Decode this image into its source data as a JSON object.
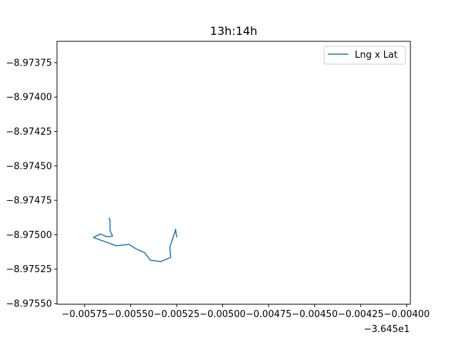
{
  "chart_data": {
    "type": "line",
    "title": "13h:14h",
    "xlabel": "",
    "ylabel": "",
    "x_offset_label": "−3.645e1",
    "xlim": [
      -0.0059,
      -0.00398
    ],
    "ylim": [
      -0.975505,
      -0.973595
    ],
    "grid": false,
    "legend_position": "upper right",
    "x_ticks": [
      -0.00575,
      -0.0055,
      -0.00525,
      -0.005,
      -0.00475,
      -0.0045,
      -0.00425,
      -0.004
    ],
    "x_tick_labels": [
      "−0.00575",
      "−0.00550",
      "−0.00525",
      "−0.00500",
      "−0.00475",
      "−0.00450",
      "−0.00425",
      "−0.00400"
    ],
    "y_ticks": [
      -8.97375,
      -8.974,
      -8.97425,
      -8.9745,
      -8.97475,
      -8.975,
      -8.97525,
      -8.9755
    ],
    "y_tick_labels": [
      "−8.97375",
      "−8.97400",
      "−8.97425",
      "−8.97450",
      "−8.97475",
      "−8.97500",
      "−8.97525",
      "−8.97550"
    ],
    "series": [
      {
        "name": "Lng x Lat",
        "color": "#1f77b4",
        "x": [
          -0.005617,
          -0.005612,
          -0.005612,
          -0.005598,
          -0.005628,
          -0.005665,
          -0.005702,
          -0.005661,
          -0.00563,
          -0.005578,
          -0.005508,
          -0.005474,
          -0.005424,
          -0.005393,
          -0.005336,
          -0.005282,
          -0.005287,
          -0.005257,
          -0.005256,
          -0.00525
        ],
        "y": [
          -8.97488,
          -8.974895,
          -8.97497,
          -8.97501,
          -8.975015,
          -8.974995,
          -8.97502,
          -8.97504,
          -8.975055,
          -8.97508,
          -8.97507,
          -8.9751,
          -8.97513,
          -8.975185,
          -8.975195,
          -8.975165,
          -8.97509,
          -8.97497,
          -8.97496,
          -8.975015
        ]
      }
    ]
  }
}
